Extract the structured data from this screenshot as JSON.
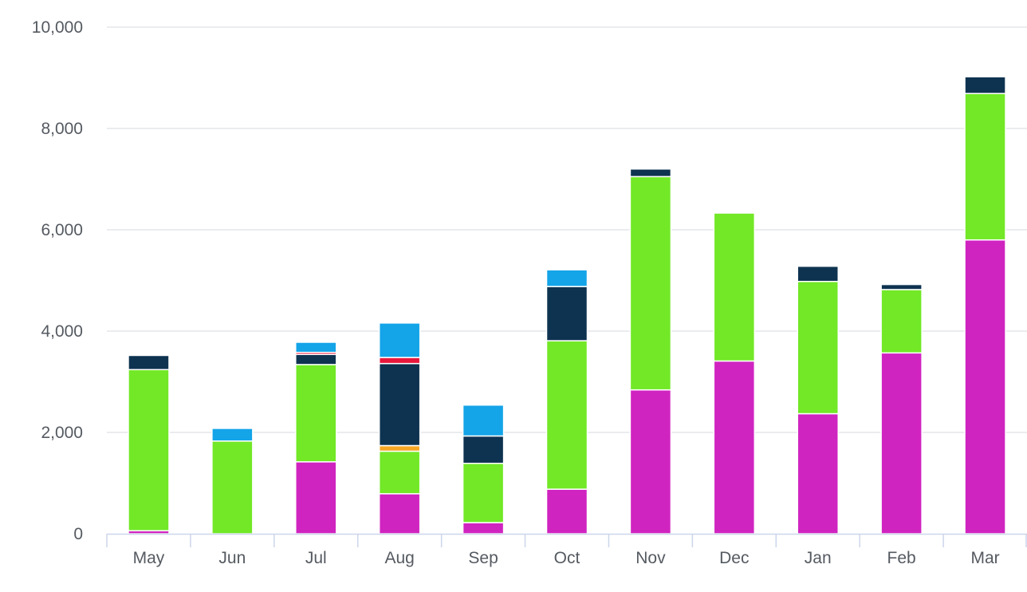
{
  "chart_data": {
    "type": "bar",
    "stacked": true,
    "title": "",
    "xlabel": "",
    "ylabel": "",
    "ylim": [
      0,
      10000
    ],
    "yticks": [
      0,
      2000,
      4000,
      6000,
      8000,
      10000
    ],
    "ytick_labels": [
      "0",
      "2,000",
      "4,000",
      "6,000",
      "8,000",
      "10,000"
    ],
    "grid": true,
    "legend": "none",
    "categories": [
      "May",
      "Jun",
      "Jul",
      "Aug",
      "Sep",
      "Oct",
      "Nov",
      "Dec",
      "Jan",
      "Feb",
      "Mar"
    ],
    "series": [
      {
        "color": "#d024c0",
        "values": [
          60,
          0,
          1420,
          790,
          220,
          880,
          2840,
          3410,
          2370,
          3570,
          5800
        ]
      },
      {
        "color": "#72e827",
        "values": [
          3180,
          1830,
          1920,
          840,
          1170,
          2930,
          4210,
          2920,
          2610,
          1250,
          2890
        ]
      },
      {
        "color": "#f5a623",
        "values": [
          0,
          0,
          0,
          110,
          0,
          0,
          0,
          0,
          0,
          0,
          0
        ]
      },
      {
        "color": "#0e3350",
        "values": [
          280,
          0,
          200,
          1620,
          540,
          1070,
          150,
          0,
          300,
          100,
          330
        ]
      },
      {
        "color": "#e8173c",
        "values": [
          0,
          0,
          40,
          120,
          0,
          0,
          0,
          0,
          0,
          0,
          0
        ]
      },
      {
        "color": "#14a4e8",
        "values": [
          0,
          250,
          200,
          680,
          610,
          330,
          0,
          0,
          0,
          0,
          0
        ]
      }
    ]
  }
}
